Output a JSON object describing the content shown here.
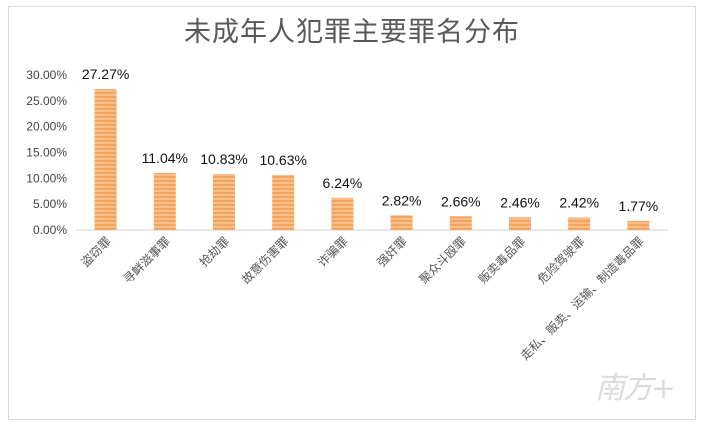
{
  "watermark": "南方+",
  "colors": {
    "bar": "#f3a45e",
    "bar_stripe": "#fbd3ab",
    "axis": "#d0d0d0"
  },
  "chart_data": {
    "type": "bar",
    "title": "未成年人犯罪主要罪名分布",
    "xlabel": "",
    "ylabel": "",
    "categories": [
      "盗窃罪",
      "寻衅滋事罪",
      "抢劫罪",
      "故意伤害罪",
      "诈骗罪",
      "强奸罪",
      "聚众斗殴罪",
      "贩卖毒品罪",
      "危险驾驶罪",
      "走私、贩卖、运输、制造毒品罪"
    ],
    "values": [
      27.27,
      11.04,
      10.83,
      10.63,
      6.24,
      2.82,
      2.66,
      2.46,
      2.42,
      1.77
    ],
    "value_labels": [
      "27.27%",
      "11.04%",
      "10.83%",
      "10.63%",
      "6.24%",
      "2.82%",
      "2.66%",
      "2.46%",
      "2.42%",
      "1.77%"
    ],
    "ylim": [
      0,
      30
    ],
    "yticks": [
      0,
      5,
      10,
      15,
      20,
      25,
      30
    ],
    "ytick_labels": [
      "0.00%",
      "5.00%",
      "10.00%",
      "15.00%",
      "20.00%",
      "25.00%",
      "30.00%"
    ],
    "grid": false,
    "legend": "none"
  }
}
